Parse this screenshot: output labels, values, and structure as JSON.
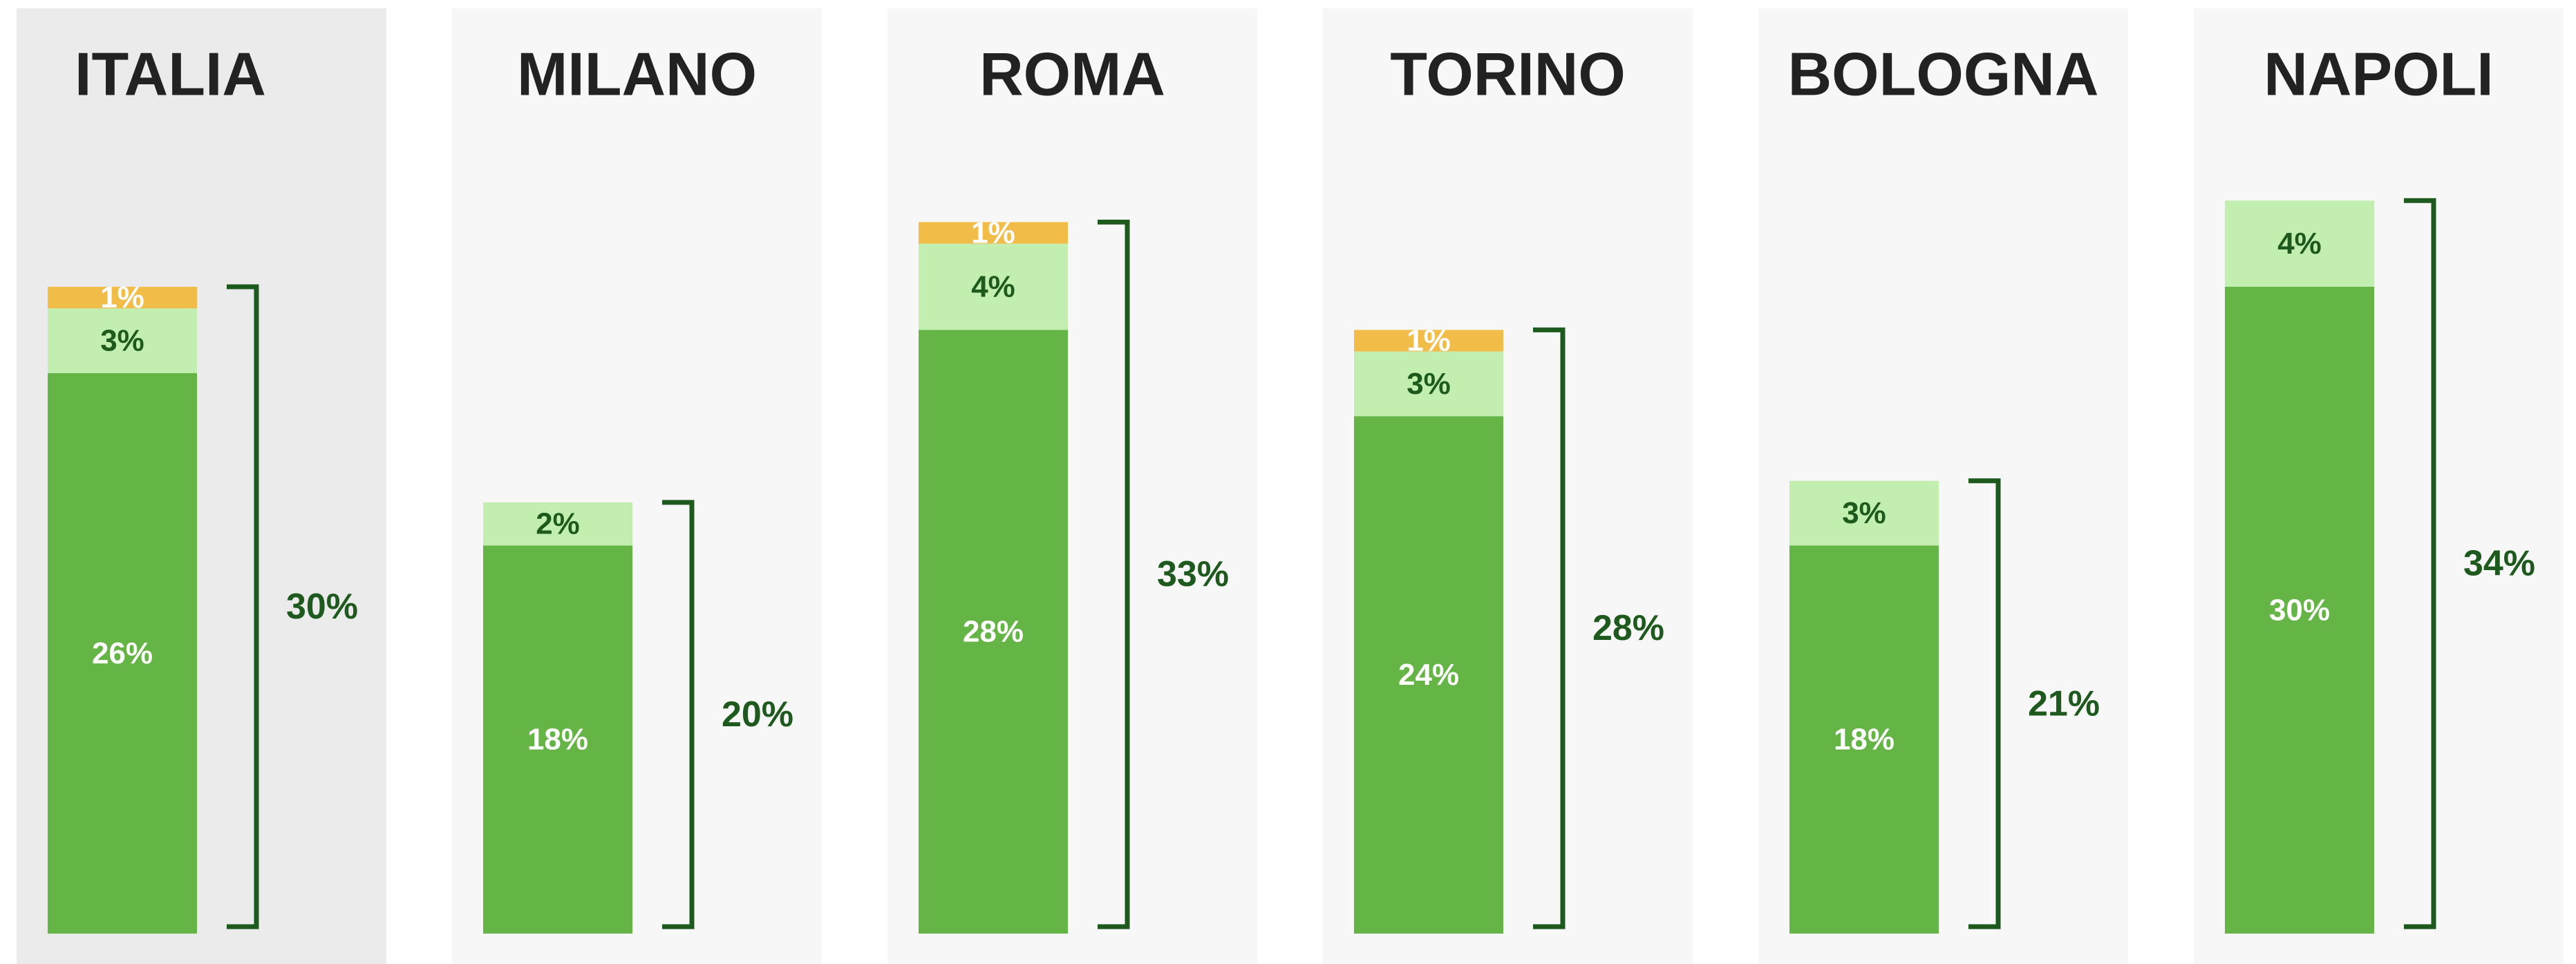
{
  "chart_data": {
    "type": "bar",
    "stacked": true,
    "categories": [
      "ITALIA",
      "MILANO",
      "ROMA",
      "TORINO",
      "BOLOGNA",
      "NAPOLI"
    ],
    "series": [
      {
        "color": "#64b446",
        "values": [
          26,
          18,
          28,
          24,
          18,
          30
        ],
        "value_labels": [
          "26%",
          "18%",
          "28%",
          "24%",
          "18%",
          "30%"
        ]
      },
      {
        "color": "#c2efb0",
        "values": [
          3,
          2,
          4,
          3,
          3,
          4
        ],
        "value_labels": [
          "3%",
          "2%",
          "4%",
          "3%",
          "3%",
          "4%"
        ]
      },
      {
        "color": "#f2bc48",
        "values": [
          1,
          null,
          1,
          1,
          null,
          null
        ],
        "value_labels": [
          "1%",
          null,
          "1%",
          "1%",
          null,
          null
        ]
      }
    ],
    "totals": [
      30,
      20,
      33,
      28,
      21,
      34
    ],
    "total_labels": [
      "30%",
      "20%",
      "33%",
      "28%",
      "21%",
      "34%"
    ],
    "total_color": "#1e5a1e"
  }
}
